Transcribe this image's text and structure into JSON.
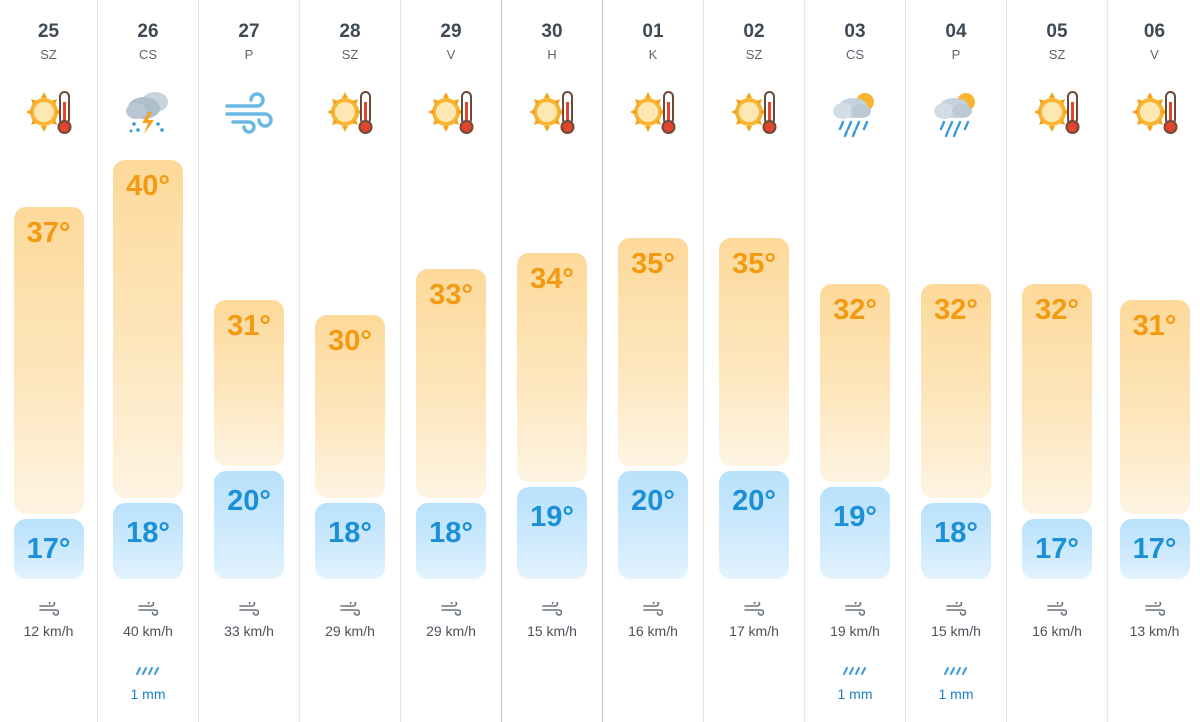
{
  "days": [
    {
      "date": "25",
      "dow": "SZ",
      "icon": "sun-hot-icon",
      "max": "37°",
      "min": "17°",
      "max_value": 37,
      "min_value": 17,
      "wind": "12 km/h",
      "rain": ""
    },
    {
      "date": "26",
      "dow": "CS",
      "icon": "thunderstorm-icon",
      "max": "40°",
      "min": "18°",
      "max_value": 40,
      "min_value": 18,
      "wind": "40 km/h",
      "rain": "1 mm"
    },
    {
      "date": "27",
      "dow": "P",
      "icon": "wind-icon",
      "max": "31°",
      "min": "20°",
      "max_value": 31,
      "min_value": 20,
      "wind": "33 km/h",
      "rain": ""
    },
    {
      "date": "28",
      "dow": "SZ",
      "icon": "sun-hot-icon",
      "max": "30°",
      "min": "18°",
      "max_value": 30,
      "min_value": 18,
      "wind": "29 km/h",
      "rain": ""
    },
    {
      "date": "29",
      "dow": "V",
      "icon": "sun-hot-icon",
      "max": "33°",
      "min": "18°",
      "max_value": 33,
      "min_value": 18,
      "wind": "29 km/h",
      "rain": ""
    },
    {
      "date": "30",
      "dow": "H",
      "icon": "sun-hot-icon",
      "max": "34°",
      "min": "19°",
      "max_value": 34,
      "min_value": 19,
      "wind": "15 km/h",
      "rain": ""
    },
    {
      "date": "01",
      "dow": "K",
      "icon": "sun-hot-icon",
      "max": "35°",
      "min": "20°",
      "max_value": 35,
      "min_value": 20,
      "wind": "16 km/h",
      "rain": ""
    },
    {
      "date": "02",
      "dow": "SZ",
      "icon": "sun-hot-icon",
      "max": "35°",
      "min": "20°",
      "max_value": 35,
      "min_value": 20,
      "wind": "17 km/h",
      "rain": ""
    },
    {
      "date": "03",
      "dow": "CS",
      "icon": "rain-sun-icon",
      "max": "32°",
      "min": "19°",
      "max_value": 32,
      "min_value": 19,
      "wind": "19 km/h",
      "rain": "1 mm"
    },
    {
      "date": "04",
      "dow": "P",
      "icon": "rain-sun-icon",
      "max": "32°",
      "min": "18°",
      "max_value": 32,
      "min_value": 18,
      "wind": "15 km/h",
      "rain": "1 mm"
    },
    {
      "date": "05",
      "dow": "SZ",
      "icon": "sun-hot-icon",
      "max": "32°",
      "min": "17°",
      "max_value": 32,
      "min_value": 17,
      "wind": "16 km/h",
      "rain": ""
    },
    {
      "date": "06",
      "dow": "V",
      "icon": "sun-hot-icon",
      "max": "31°",
      "min": "17°",
      "max_value": 31,
      "min_value": 17,
      "wind": "13 km/h",
      "rain": ""
    }
  ],
  "colors": {
    "max_text": "#f39a10",
    "min_text": "#1b90d6",
    "rain_text": "#1b7fc4",
    "bar_warm": "#fdd99a",
    "bar_cool": "#b8e1fb"
  }
}
